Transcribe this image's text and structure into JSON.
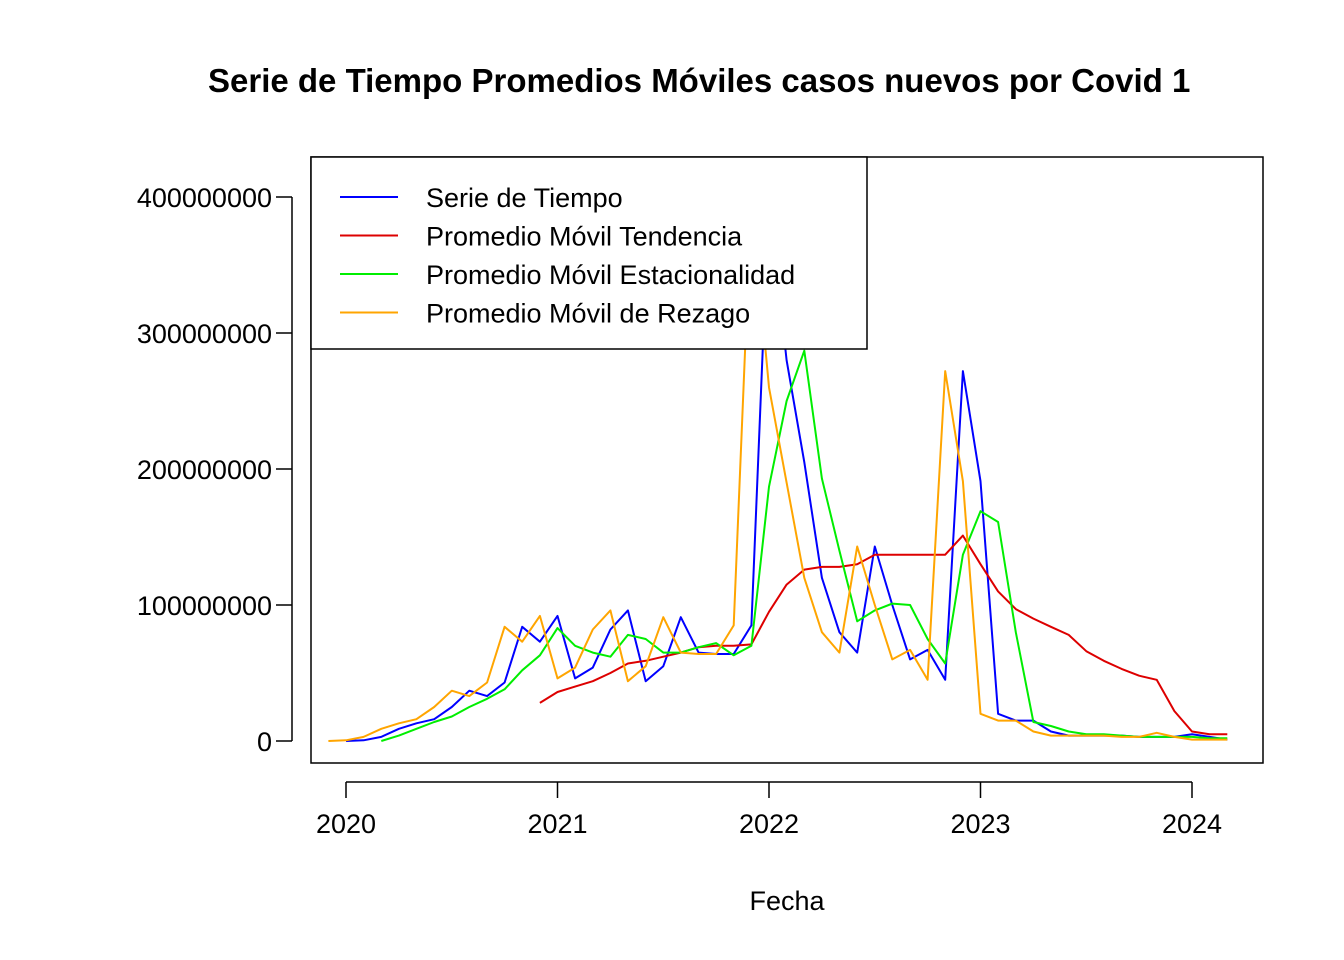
{
  "chart_data": {
    "type": "line",
    "title": "Serie de Tiempo Promedios Móviles casos nuevos por Covid 1",
    "xlabel": "Fecha",
    "ylabel": "",
    "xlim": [
      2019.92,
      2024.17
    ],
    "ylim": [
      0,
      400000000
    ],
    "x_ticks": [
      2020,
      2021,
      2022,
      2023,
      2024
    ],
    "x_tick_labels": [
      "2020",
      "2021",
      "2022",
      "2023",
      "2024"
    ],
    "y_ticks": [
      0,
      100000000,
      200000000,
      300000000,
      400000000
    ],
    "y_tick_labels": [
      "0",
      "100000000",
      "200000000",
      "300000000",
      "400000000"
    ],
    "grid": false,
    "legend_position": "top-left",
    "series": [
      {
        "name": "Serie de Tiempo",
        "color": "#0000FF",
        "x": [
          2020.0,
          2020.083,
          2020.167,
          2020.25,
          2020.333,
          2020.417,
          2020.5,
          2020.583,
          2020.667,
          2020.75,
          2020.833,
          2020.917,
          2021.0,
          2021.083,
          2021.167,
          2021.25,
          2021.333,
          2021.417,
          2021.5,
          2021.583,
          2021.667,
          2021.75,
          2021.833,
          2021.917,
          2022.0,
          2022.083,
          2022.167,
          2022.25,
          2022.333,
          2022.417,
          2022.5,
          2022.583,
          2022.667,
          2022.75,
          2022.833,
          2022.917,
          2023.0,
          2023.083,
          2023.167,
          2023.25,
          2023.333,
          2023.417,
          2023.5,
          2023.583,
          2023.667,
          2023.75,
          2023.833,
          2023.917,
          2024.0,
          2024.083,
          2024.167
        ],
        "y": [
          0,
          500000,
          3000000,
          9000000,
          13000000,
          16000000,
          25000000,
          37000000,
          33000000,
          43000000,
          84000000,
          73000000,
          92000000,
          46000000,
          54000000,
          82000000,
          96000000,
          44000000,
          55000000,
          91000000,
          65000000,
          64000000,
          64000000,
          85000000,
          400000000,
          280000000,
          205000000,
          120000000,
          80000000,
          65000000,
          143000000,
          100000000,
          60000000,
          67000000,
          45000000,
          272000000,
          191000000,
          20000000,
          15000000,
          15000000,
          7000000,
          4000000,
          4000000,
          4000000,
          4000000,
          3000000,
          3000000,
          3000000,
          5000000,
          3000000,
          1000000
        ]
      },
      {
        "name": "Promedio Móvil Tendencia",
        "color": "#DD0000",
        "x": [
          2020.917,
          2021.0,
          2021.083,
          2021.167,
          2021.25,
          2021.333,
          2021.417,
          2021.5,
          2021.583,
          2021.667,
          2021.75,
          2021.833,
          2021.917,
          2022.0,
          2022.083,
          2022.167,
          2022.25,
          2022.333,
          2022.417,
          2022.5,
          2022.583,
          2022.667,
          2022.75,
          2022.833,
          2022.917,
          2023.0,
          2023.083,
          2023.167,
          2023.25,
          2023.333,
          2023.417,
          2023.5,
          2023.583,
          2023.667,
          2023.75,
          2023.833,
          2023.917,
          2024.0,
          2024.083,
          2024.167
        ],
        "y": [
          28000000,
          36000000,
          40000000,
          44000000,
          50000000,
          57000000,
          59000000,
          62000000,
          65000000,
          69000000,
          70000000,
          70000000,
          71000000,
          95000000,
          115000000,
          126000000,
          128000000,
          128000000,
          130000000,
          137000000,
          137000000,
          137000000,
          137000000,
          137000000,
          151000000,
          130000000,
          110000000,
          97000000,
          90000000,
          84000000,
          78000000,
          66000000,
          59000000,
          53000000,
          48000000,
          45000000,
          22000000,
          7000000,
          5000000,
          5000000
        ]
      },
      {
        "name": "Promedio Móvil Estacionalidad",
        "color": "#00EE00",
        "x": [
          2020.167,
          2020.25,
          2020.333,
          2020.417,
          2020.5,
          2020.583,
          2020.667,
          2020.75,
          2020.833,
          2020.917,
          2021.0,
          2021.083,
          2021.167,
          2021.25,
          2021.333,
          2021.417,
          2021.5,
          2021.583,
          2021.667,
          2021.75,
          2021.833,
          2021.917,
          2022.0,
          2022.083,
          2022.167,
          2022.25,
          2022.333,
          2022.417,
          2022.5,
          2022.583,
          2022.667,
          2022.75,
          2022.833,
          2022.917,
          2023.0,
          2023.083,
          2023.167,
          2023.25,
          2023.333,
          2023.417,
          2023.5,
          2023.583,
          2023.667,
          2023.75,
          2023.833,
          2023.917,
          2024.0,
          2024.083,
          2024.167
        ],
        "y": [
          0,
          4000000,
          9000000,
          14000000,
          18000000,
          25000000,
          31000000,
          38000000,
          52000000,
          63000000,
          83000000,
          70000000,
          65000000,
          62000000,
          78000000,
          75000000,
          65000000,
          65000000,
          69000000,
          72000000,
          63000000,
          70000000,
          187000000,
          250000000,
          287000000,
          193000000,
          140000000,
          88000000,
          96000000,
          101000000,
          100000000,
          75000000,
          57000000,
          137000000,
          169000000,
          161000000,
          80000000,
          14000000,
          11000000,
          7000000,
          5000000,
          5000000,
          4000000,
          3000000,
          3000000,
          3000000,
          3000000,
          2000000,
          2000000
        ]
      },
      {
        "name": "Promedio Móvil de Rezago",
        "color": "#FFA500",
        "x": [
          2019.917,
          2020.0,
          2020.083,
          2020.167,
          2020.25,
          2020.333,
          2020.417,
          2020.5,
          2020.583,
          2020.667,
          2020.75,
          2020.833,
          2020.917,
          2021.0,
          2021.083,
          2021.167,
          2021.25,
          2021.333,
          2021.417,
          2021.5,
          2021.583,
          2021.667,
          2021.75,
          2021.833,
          2021.917,
          2022.0,
          2022.083,
          2022.167,
          2022.25,
          2022.333,
          2022.417,
          2022.5,
          2022.583,
          2022.667,
          2022.75,
          2022.833,
          2022.917,
          2023.0,
          2023.083,
          2023.167,
          2023.25,
          2023.333,
          2023.417,
          2023.5,
          2023.583,
          2023.667,
          2023.75,
          2023.833,
          2023.917,
          2024.0,
          2024.083,
          2024.167
        ],
        "y": [
          0,
          500000,
          3000000,
          9000000,
          13000000,
          16000000,
          25000000,
          37000000,
          33000000,
          43000000,
          84000000,
          73000000,
          92000000,
          46000000,
          54000000,
          82000000,
          96000000,
          44000000,
          55000000,
          91000000,
          65000000,
          64000000,
          64000000,
          85000000,
          400000000,
          260000000,
          190000000,
          120000000,
          80000000,
          65000000,
          143000000,
          100000000,
          60000000,
          67000000,
          45000000,
          272000000,
          191000000,
          20000000,
          15000000,
          15000000,
          7000000,
          4000000,
          4000000,
          4000000,
          4000000,
          3000000,
          3000000,
          6000000,
          3000000,
          1000000,
          1000000,
          1000000
        ]
      }
    ]
  }
}
